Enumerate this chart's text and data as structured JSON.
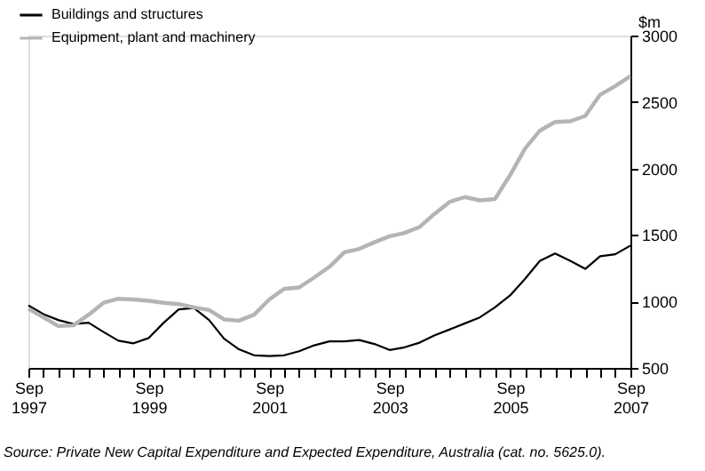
{
  "chart_data": {
    "type": "line",
    "ylabel": "$m",
    "x": [
      "1997-09",
      "1997-12",
      "1998-03",
      "1998-06",
      "1998-09",
      "1998-12",
      "1999-03",
      "1999-06",
      "1999-09",
      "1999-12",
      "2000-03",
      "2000-06",
      "2000-09",
      "2000-12",
      "2001-03",
      "2001-06",
      "2001-09",
      "2001-12",
      "2002-03",
      "2002-06",
      "2002-09",
      "2002-12",
      "2003-03",
      "2003-06",
      "2003-09",
      "2003-12",
      "2004-03",
      "2004-06",
      "2004-09",
      "2004-12",
      "2005-03",
      "2005-06",
      "2005-09",
      "2005-12",
      "2006-03",
      "2006-06",
      "2006-09",
      "2006-12",
      "2007-03",
      "2007-06",
      "2007-09"
    ],
    "series": [
      {
        "name": "Buildings and structures",
        "color": "#000000",
        "values": [
          970,
          905,
          860,
          830,
          840,
          770,
          705,
          685,
          725,
          840,
          940,
          950,
          860,
          720,
          640,
          595,
          590,
          595,
          625,
          670,
          700,
          700,
          710,
          680,
          635,
          655,
          690,
          745,
          790,
          835,
          880,
          955,
          1045,
          1170,
          1305,
          1360,
          1305,
          1245,
          1340,
          1355,
          1420
        ]
      },
      {
        "name": "Equipment, plant and machinery",
        "color": "#b4b4b4",
        "values": [
          945,
          880,
          815,
          820,
          900,
          990,
          1020,
          1015,
          1005,
          990,
          980,
          955,
          935,
          865,
          855,
          900,
          1015,
          1095,
          1105,
          1180,
          1260,
          1370,
          1395,
          1445,
          1490,
          1515,
          1560,
          1660,
          1750,
          1785,
          1760,
          1770,
          1950,
          2150,
          2285,
          2350,
          2355,
          2395,
          2555,
          2620,
          2695
        ]
      }
    ],
    "xlim": [
      "1997-09",
      "2007-09"
    ],
    "xticks": [
      {
        "value": "1997-09",
        "label": "Sep\n1997"
      },
      {
        "value": "1997-12",
        "label": null
      },
      {
        "value": "1998-03",
        "label": null
      },
      {
        "value": "1998-06",
        "label": null
      },
      {
        "value": "1998-09",
        "label": null
      },
      {
        "value": "1998-12",
        "label": null
      },
      {
        "value": "1999-03",
        "label": null
      },
      {
        "value": "1999-06",
        "label": null
      },
      {
        "value": "1999-09",
        "label": "Sep\n1999"
      },
      {
        "value": "1999-12",
        "label": null
      },
      {
        "value": "2000-03",
        "label": null
      },
      {
        "value": "2000-06",
        "label": null
      },
      {
        "value": "2000-09",
        "label": null
      },
      {
        "value": "2000-12",
        "label": null
      },
      {
        "value": "2001-03",
        "label": null
      },
      {
        "value": "2001-06",
        "label": null
      },
      {
        "value": "2001-09",
        "label": "Sep\n2001"
      },
      {
        "value": "2001-12",
        "label": null
      },
      {
        "value": "2002-03",
        "label": null
      },
      {
        "value": "2002-06",
        "label": null
      },
      {
        "value": "2002-09",
        "label": null
      },
      {
        "value": "2002-12",
        "label": null
      },
      {
        "value": "2003-03",
        "label": null
      },
      {
        "value": "2003-06",
        "label": null
      },
      {
        "value": "2003-09",
        "label": "Sep\n2003"
      },
      {
        "value": "2003-12",
        "label": null
      },
      {
        "value": "2004-03",
        "label": null
      },
      {
        "value": "2004-06",
        "label": null
      },
      {
        "value": "2004-09",
        "label": null
      },
      {
        "value": "2004-12",
        "label": null
      },
      {
        "value": "2005-03",
        "label": null
      },
      {
        "value": "2005-06",
        "label": null
      },
      {
        "value": "2005-09",
        "label": "Sep\n2005"
      },
      {
        "value": "2005-12",
        "label": null
      },
      {
        "value": "2006-03",
        "label": null
      },
      {
        "value": "2006-06",
        "label": null
      },
      {
        "value": "2006-09",
        "label": null
      },
      {
        "value": "2006-12",
        "label": null
      },
      {
        "value": "2007-03",
        "label": null
      },
      {
        "value": "2007-06",
        "label": null
      },
      {
        "value": "2007-09",
        "label": "Sep\n2007"
      }
    ],
    "ylim": [
      500,
      3000
    ],
    "yticks": [
      500,
      1000,
      1500,
      2000,
      2500,
      3000
    ],
    "grid": false,
    "legend": "top left",
    "marker": "none",
    "line_style": "solid",
    "annotations": [
      "Source: Private New Capital Expenditure and Expected Expenditure, Australia (cat. no. 5625.0)."
    ]
  }
}
